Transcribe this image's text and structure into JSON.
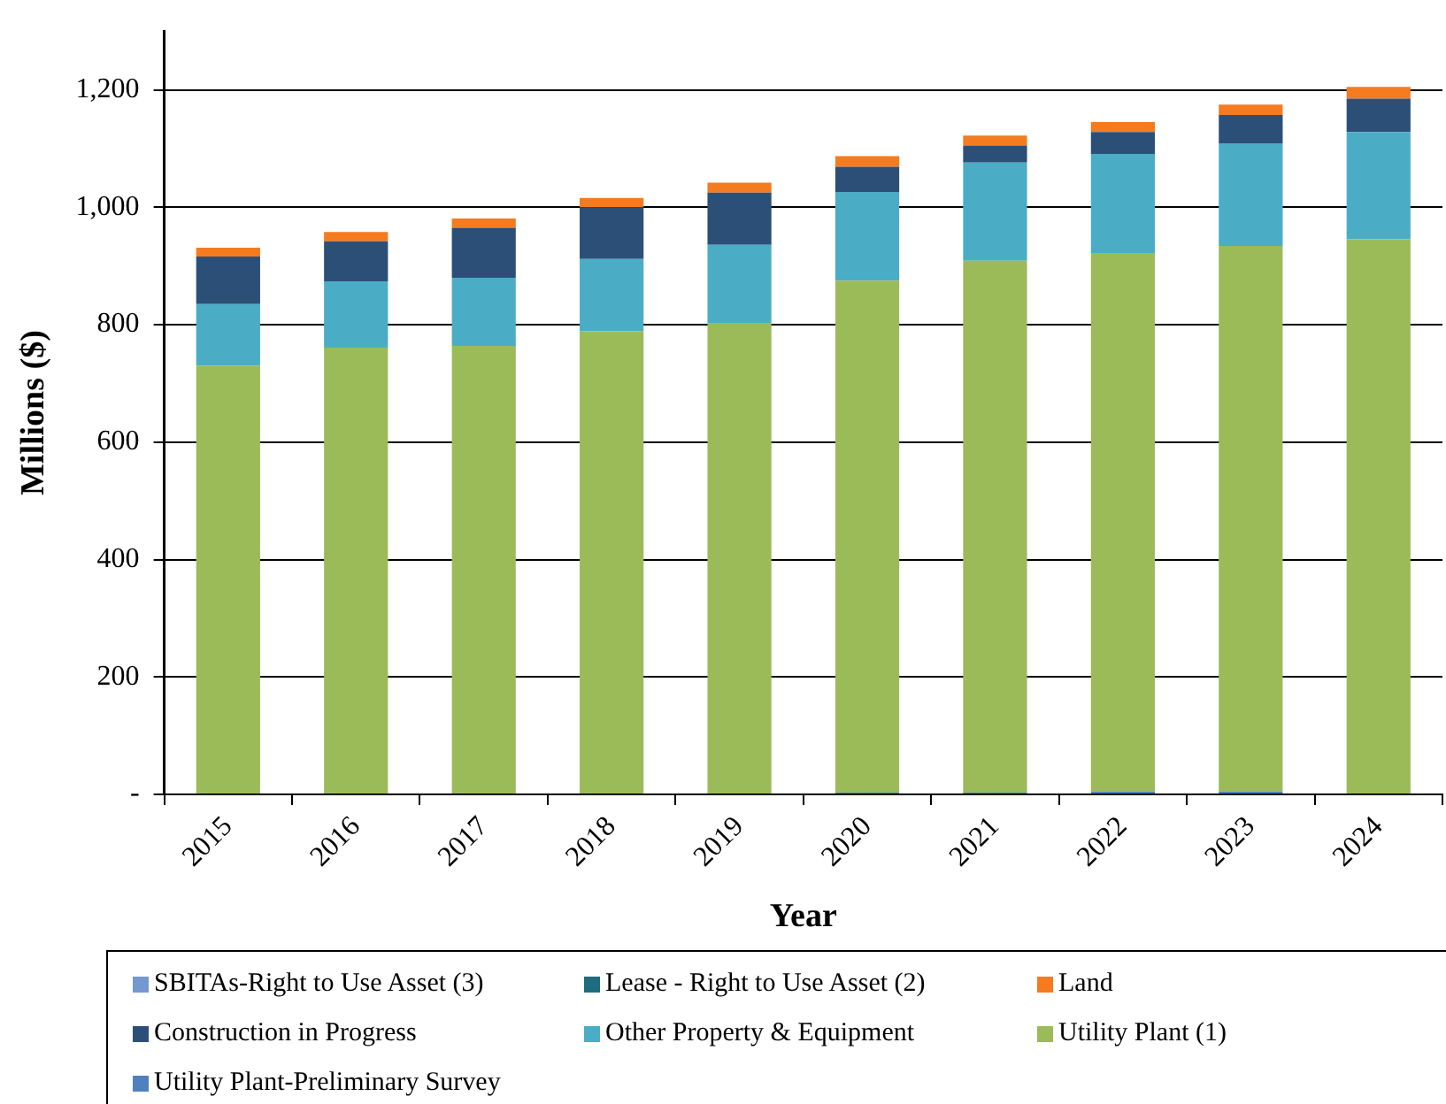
{
  "chart_data": {
    "type": "bar",
    "stacked": true,
    "xlabel": "Year",
    "ylabel": "Millions ($)",
    "categories": [
      "2015",
      "2016",
      "2017",
      "2018",
      "2019",
      "2020",
      "2021",
      "2022",
      "2023",
      "2024"
    ],
    "series": [
      {
        "name": "Utility Plant-Preliminary Survey",
        "color": "#4f81bd",
        "values": [
          0,
          0,
          0,
          0,
          0,
          3,
          3,
          5,
          5,
          0
        ]
      },
      {
        "name": "Utility Plant (1)",
        "color": "#9bbb59",
        "values": [
          730,
          761,
          764,
          789,
          803,
          872,
          906,
          917,
          929,
          946
        ]
      },
      {
        "name": "Other Property & Equipment",
        "color": "#4bacc6",
        "values": [
          105,
          113,
          116,
          123,
          133,
          151,
          167,
          169,
          175,
          182
        ]
      },
      {
        "name": "Construction in Progress",
        "color": "#2c4f78",
        "values": [
          81,
          68,
          85,
          88,
          89,
          43,
          29,
          37,
          48,
          57
        ]
      },
      {
        "name": "Land",
        "color": "#f47b20",
        "values": [
          15,
          16,
          16,
          16,
          17,
          18,
          17,
          17,
          18,
          20
        ]
      },
      {
        "name": "Lease - Right to Use Asset (2)",
        "color": "#1f6b80",
        "values": [
          0,
          0,
          0,
          0,
          0,
          0,
          0,
          0,
          0,
          0
        ]
      },
      {
        "name": "SBITAs-Right to Use Asset (3)",
        "color": "#7399cf",
        "values": [
          0,
          0,
          0,
          0,
          0,
          0,
          0,
          0,
          0,
          0
        ]
      }
    ],
    "ylim": [
      0,
      1300
    ],
    "yticks": [
      {
        "value": 0,
        "label": "-"
      },
      200,
      400,
      600,
      800,
      {
        "value": 1000,
        "label": "1,000"
      },
      {
        "value": 1200,
        "label": "1,200"
      }
    ],
    "grid": "y",
    "legend": "bottom"
  }
}
